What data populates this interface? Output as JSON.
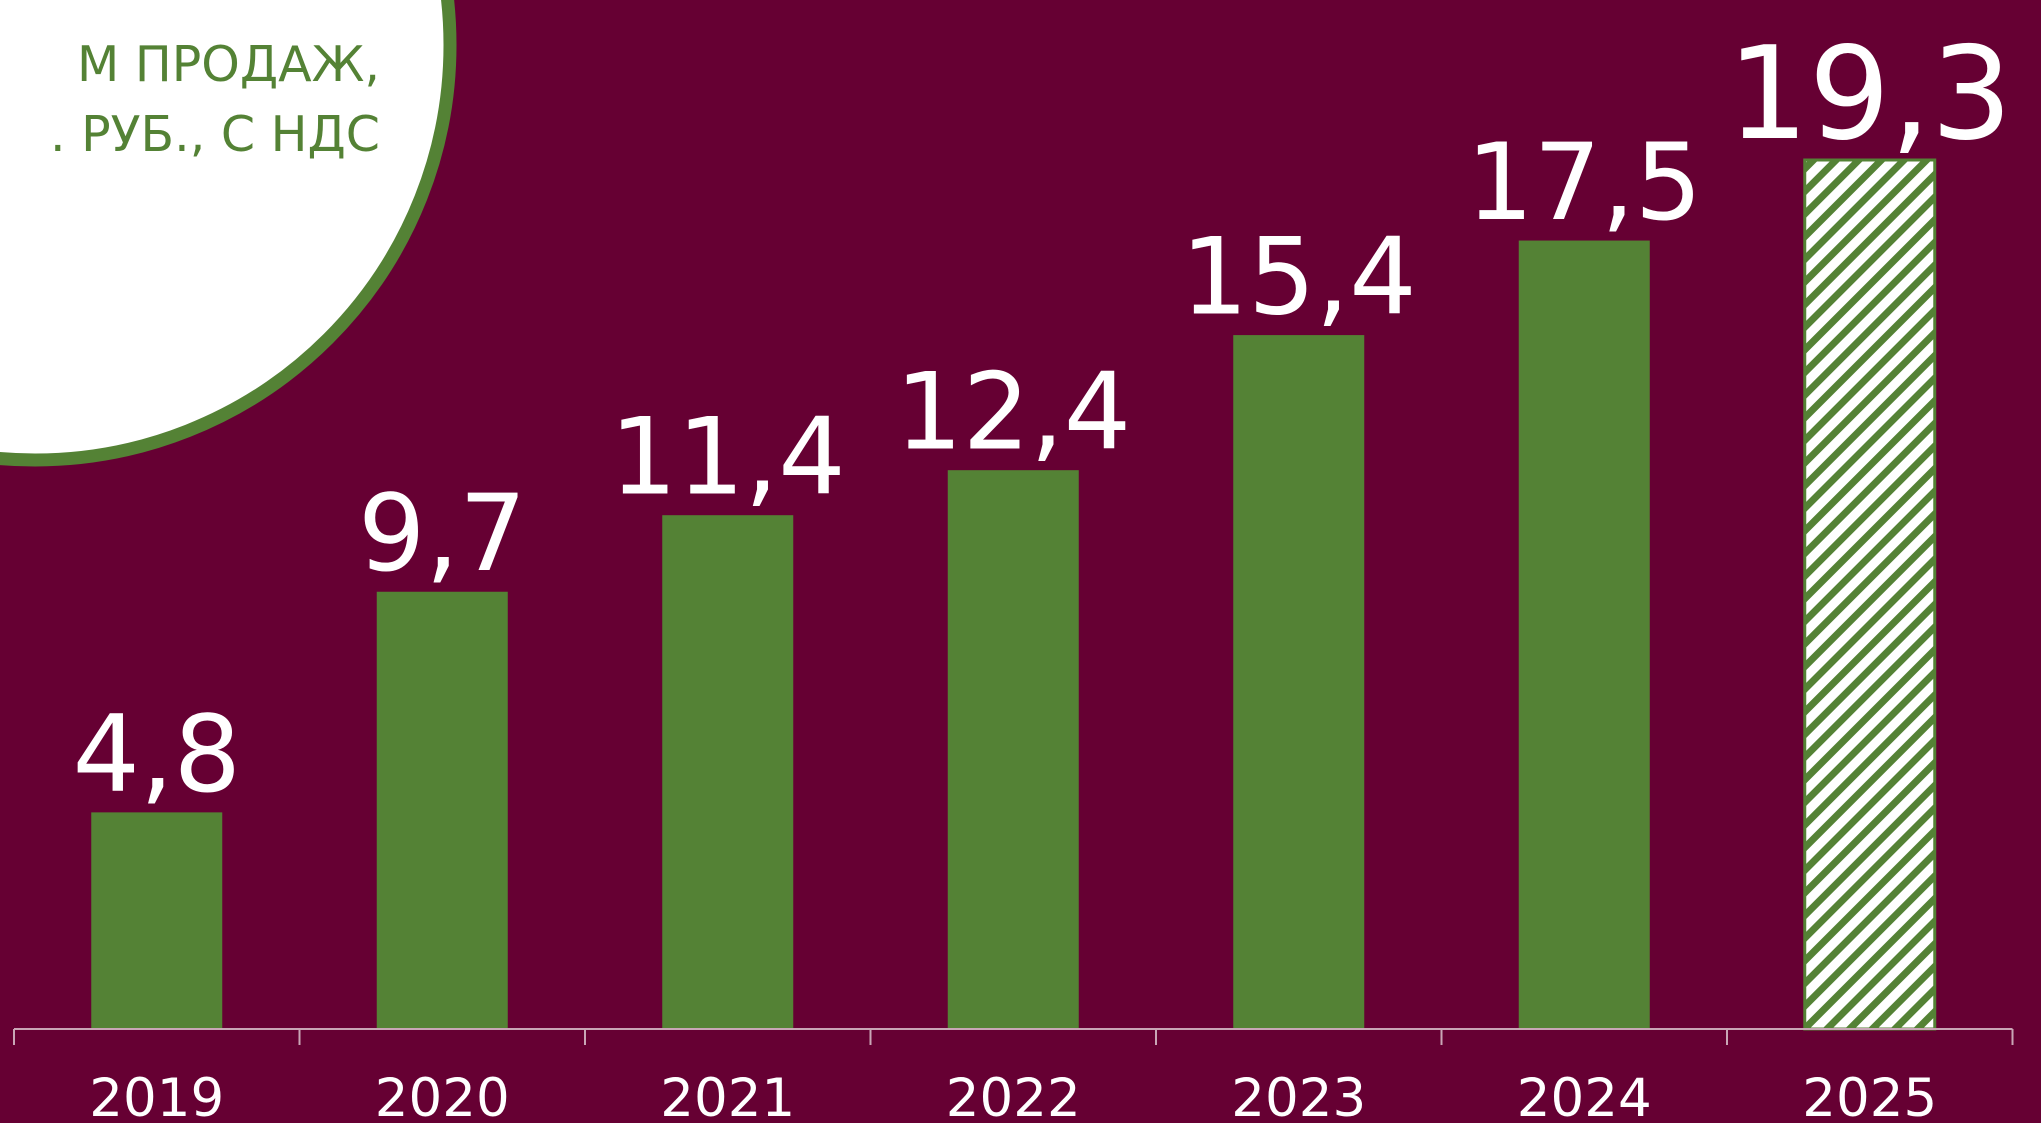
{
  "chart_data": {
    "type": "bar",
    "title_lines": [
      "М ПРОДАЖ,",
      ". РУБ., С НДС"
    ],
    "categories": [
      "2019",
      "2020",
      "2021",
      "2022",
      "2023",
      "2024",
      "2025"
    ],
    "values": [
      4.8,
      9.7,
      11.4,
      12.4,
      15.4,
      17.5,
      19.3
    ],
    "value_labels": [
      "4,8",
      "9,7",
      "11,4",
      "12,4",
      "15,4",
      "17,5",
      "19,3"
    ],
    "hatched_categories": [
      "2025"
    ],
    "ylim": [
      0,
      19.3
    ],
    "grid": false,
    "legend": "none",
    "colors": {
      "background": "#660033",
      "bar": "#548235",
      "hatch": "#548235",
      "hatch_background": "#ffffff",
      "text": "#ffffff",
      "axis": "#c9a6b6",
      "title_circle": "#ffffff",
      "title_circle_border": "#548235",
      "title_text": "#548235"
    }
  }
}
